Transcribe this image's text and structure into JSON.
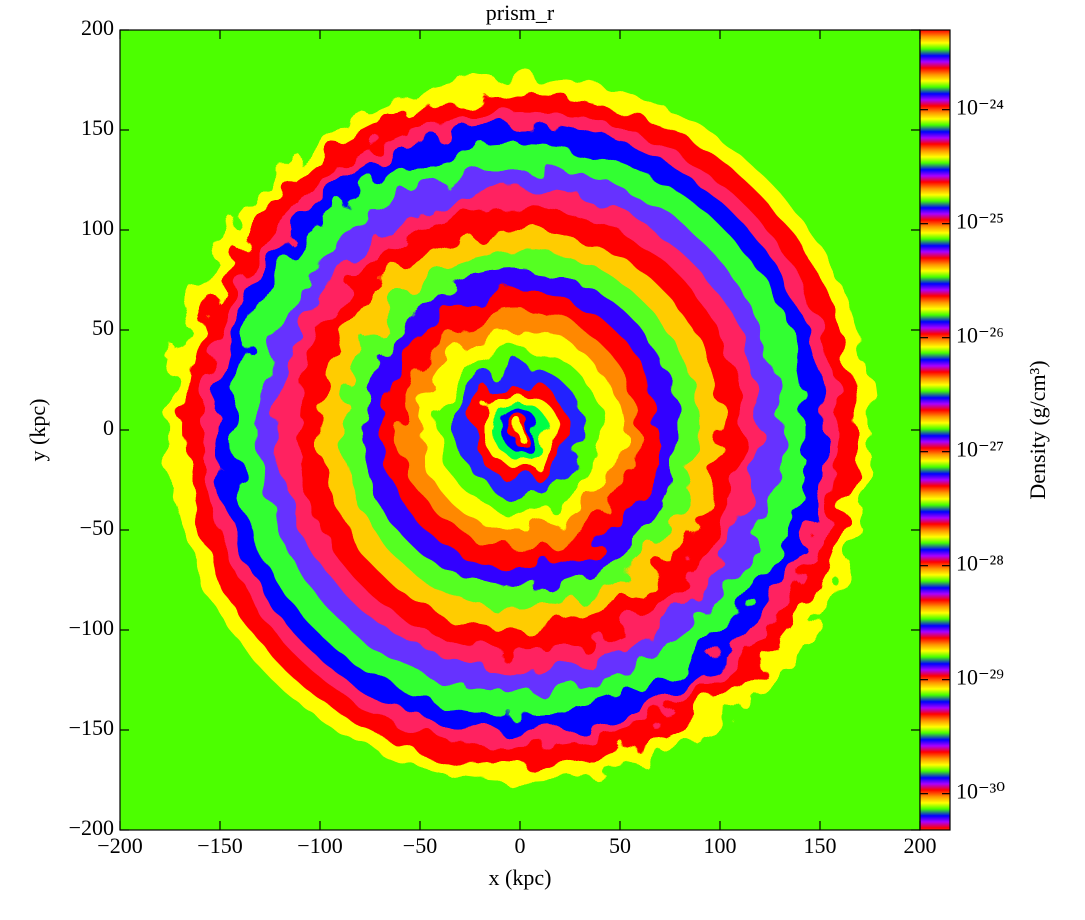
{
  "chart_data": {
    "type": "heatmap",
    "title": "prism_r",
    "x_label": "x  (kpc)",
    "y_label": "y  (kpc)",
    "xlim": [
      -200,
      200
    ],
    "ylim": [
      -200,
      200
    ],
    "xticks": [
      {
        "value": -200,
        "label": "−200"
      },
      {
        "value": -150,
        "label": "−150"
      },
      {
        "value": -100,
        "label": "−100"
      },
      {
        "value": -50,
        "label": "−50"
      },
      0,
      50,
      100,
      150,
      200
    ],
    "yticks": [
      {
        "value": -200,
        "label": "−200"
      },
      {
        "value": -150,
        "label": "−150"
      },
      {
        "value": -100,
        "label": "−100"
      },
      {
        "value": -50,
        "label": "−50"
      },
      0,
      50,
      100,
      150,
      200
    ],
    "colorbar": {
      "label": "Density  (g/cm³)",
      "log_scale": true,
      "colormap": "prism_r",
      "clim": [
        4.8e-31,
        5e-24
      ],
      "ticks": [
        {
          "value": 1e-24,
          "label": "10⁻²⁴"
        },
        {
          "value": 1e-25,
          "label": "10⁻²⁵"
        },
        {
          "value": 1e-26,
          "label": "10⁻²⁶"
        },
        {
          "value": 1e-27,
          "label": "10⁻²⁷"
        },
        {
          "value": 1e-28,
          "label": "10⁻²⁸"
        },
        {
          "value": 1e-29,
          "label": "10⁻²⁹"
        },
        {
          "value": 1e-30,
          "label": "10⁻³⁰"
        }
      ]
    }
  }
}
